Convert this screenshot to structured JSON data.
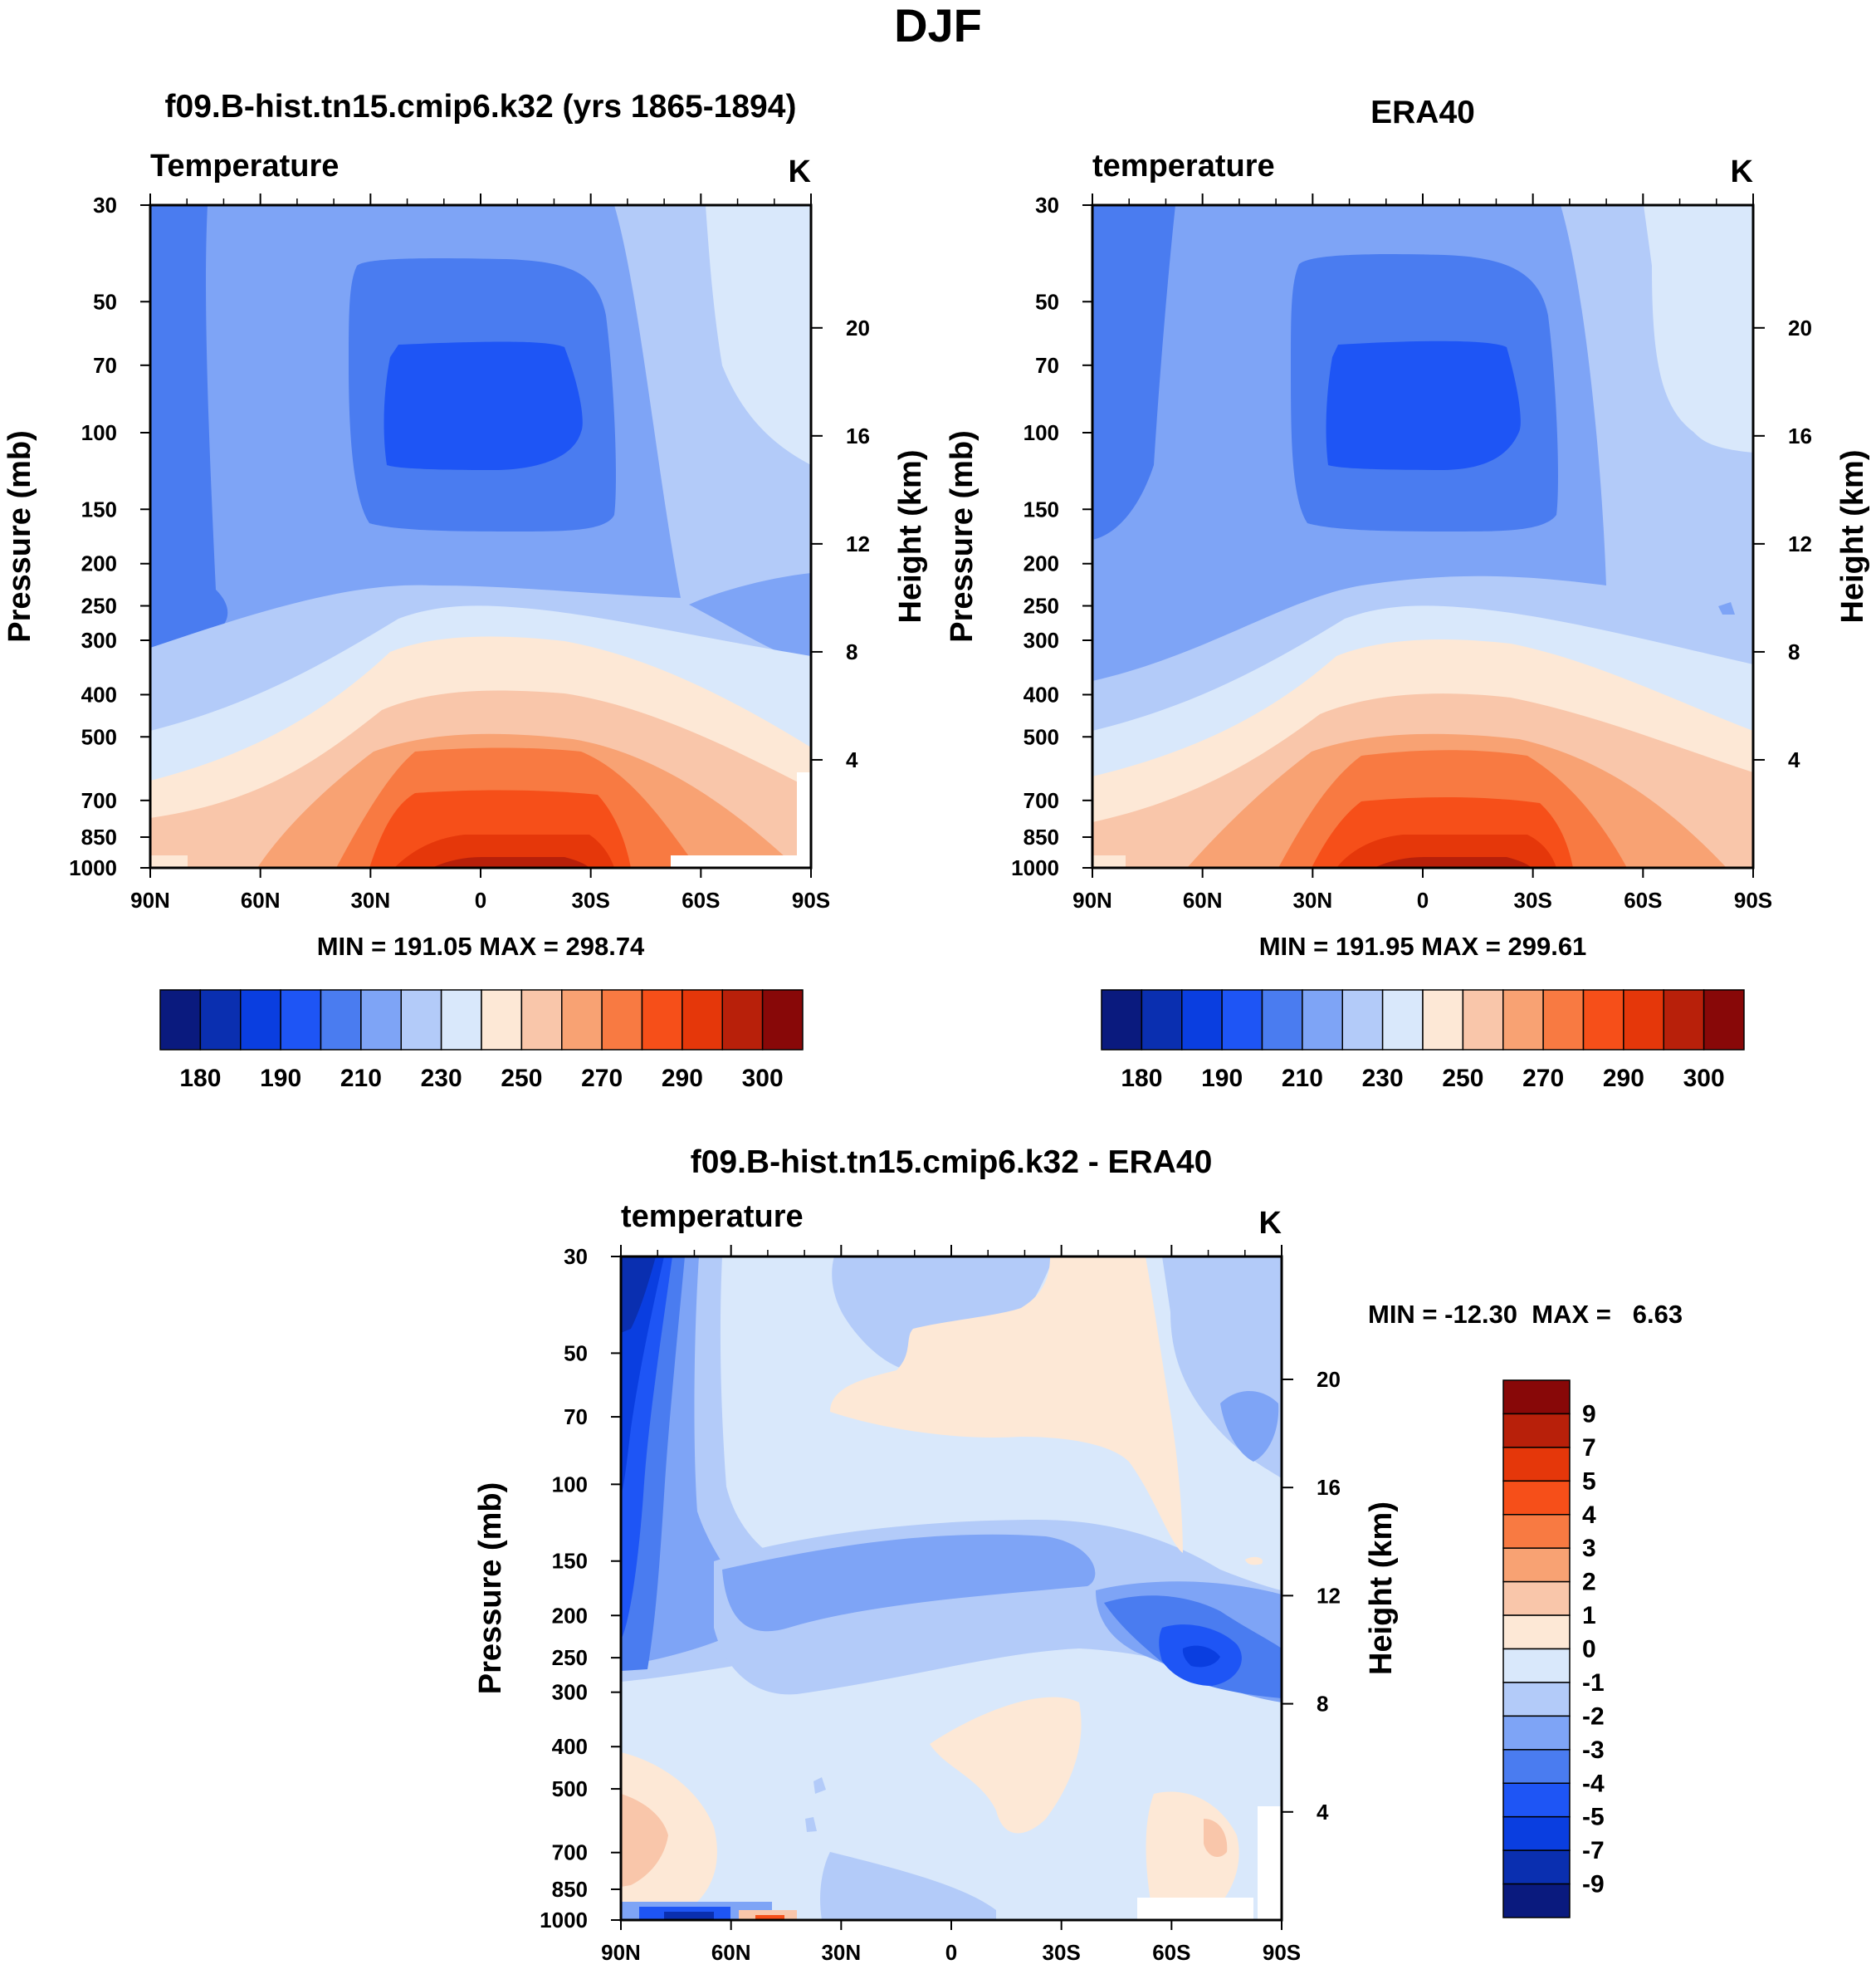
{
  "figure": {
    "title": "DJF"
  },
  "chart_data": [
    {
      "type": "contour",
      "title": "f09.B-hist.tn15.cmip6.k32 (yrs 1865-1894)",
      "variable": "Temperature",
      "units": "K",
      "ylabel": "Pressure (mb)",
      "ylabel_right": "Height (km)",
      "x_ticks": [
        "90N",
        "60N",
        "30N",
        "0",
        "30S",
        "60S",
        "90S"
      ],
      "y_ticks": [
        "30",
        "50",
        "70",
        "100",
        "150",
        "200",
        "250",
        "300",
        "400",
        "500",
        "700",
        "850",
        "1000"
      ],
      "y_ticks_right": [
        "20",
        "16",
        "12",
        "8",
        "4"
      ],
      "stats": "MIN = 191.05  MAX = 298.74",
      "min": 191.05,
      "max": 298.74,
      "colorbar_labels": [
        "180",
        "190",
        "210",
        "230",
        "250",
        "270",
        "290",
        "300"
      ]
    },
    {
      "type": "contour",
      "title": "ERA40",
      "variable": "temperature",
      "units": "K",
      "ylabel": "Pressure (mb)",
      "ylabel_right": "Height (km)",
      "x_ticks": [
        "90N",
        "60N",
        "30N",
        "0",
        "30S",
        "60S",
        "90S"
      ],
      "y_ticks": [
        "30",
        "50",
        "70",
        "100",
        "150",
        "200",
        "250",
        "300",
        "400",
        "500",
        "700",
        "850",
        "1000"
      ],
      "y_ticks_right": [
        "20",
        "16",
        "12",
        "8",
        "4"
      ],
      "stats": "MIN = 191.95  MAX = 299.61",
      "min": 191.95,
      "max": 299.61,
      "colorbar_labels": [
        "180",
        "190",
        "210",
        "230",
        "250",
        "270",
        "290",
        "300"
      ]
    },
    {
      "type": "contour",
      "title": "f09.B-hist.tn15.cmip6.k32 - ERA40",
      "variable": "temperature",
      "units": "K",
      "ylabel": "Pressure (mb)",
      "ylabel_right": "Height (km)",
      "x_ticks": [
        "90N",
        "60N",
        "30N",
        "0",
        "30S",
        "60S",
        "90S"
      ],
      "y_ticks": [
        "30",
        "50",
        "70",
        "100",
        "150",
        "200",
        "250",
        "300",
        "400",
        "500",
        "700",
        "850",
        "1000"
      ],
      "y_ticks_right": [
        "20",
        "16",
        "12",
        "8",
        "4"
      ],
      "stats": "MIN = -12.30  MAX =   6.63",
      "min": -12.3,
      "max": 6.63,
      "colorbar_labels": [
        "9",
        "7",
        "5",
        "4",
        "3",
        "2",
        "1",
        "0",
        "-1",
        "-2",
        "-3",
        "-4",
        "-5",
        "-7",
        "-9"
      ]
    }
  ],
  "colors": {
    "temp_scale": [
      "#0a1a7e",
      "#0a2fb0",
      "#0a3ee0",
      "#1e55f5",
      "#4a7cf0",
      "#7ea4f6",
      "#b3cbf9",
      "#d9e8fb",
      "#fde8d6",
      "#f9c6aa",
      "#f8a273",
      "#f87a42",
      "#f64f19",
      "#e5370a",
      "#b8200a",
      "#880808"
    ],
    "diff_scale": [
      "#880808",
      "#b8200a",
      "#e5370a",
      "#f64f19",
      "#f87a42",
      "#f8a273",
      "#f9c6aa",
      "#fde8d6",
      "#d9e8fb",
      "#b3cbf9",
      "#7ea4f6",
      "#4a7cf0",
      "#1e55f5",
      "#0a3ee0",
      "#0a2fb0",
      "#0a1a7e"
    ]
  }
}
